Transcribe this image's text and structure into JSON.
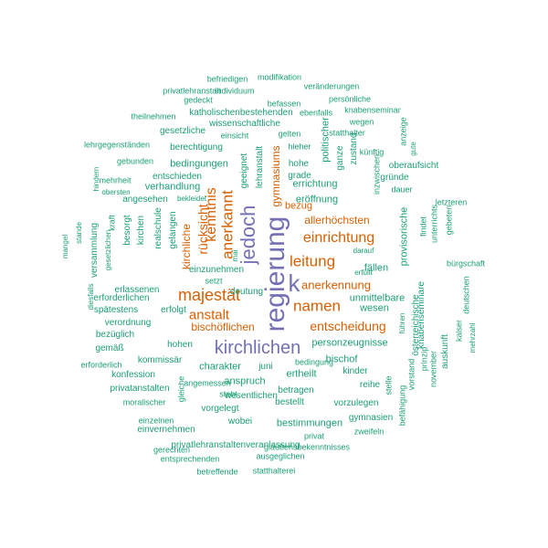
{
  "colors": {
    "green": "#1b9e77",
    "orange": "#d95f02",
    "purple": "#7570b3"
  },
  "words": [
    {
      "text": "regierung",
      "color": "purple"
    },
    {
      "text": "k",
      "color": "purple"
    },
    {
      "text": "jedoch",
      "color": "purple"
    },
    {
      "text": "kirchlichen",
      "color": "purple"
    },
    {
      "text": "majestät",
      "color": "orange"
    },
    {
      "text": "leitung",
      "color": "orange"
    },
    {
      "text": "anerkannt",
      "color": "orange"
    },
    {
      "text": "namen",
      "color": "orange"
    },
    {
      "text": "einrichtung",
      "color": "orange"
    },
    {
      "text": "anstalt",
      "color": "orange"
    },
    {
      "text": "kenntnis",
      "color": "orange"
    },
    {
      "text": "entscheidung",
      "color": "orange"
    },
    {
      "text": "rücksicht",
      "color": "orange"
    },
    {
      "text": "anerkennung",
      "color": "orange"
    },
    {
      "text": "gymnasiums",
      "color": "orange"
    },
    {
      "text": "allerhöchsten",
      "color": "orange"
    },
    {
      "text": "bischöflichen",
      "color": "orange"
    },
    {
      "text": "kirchliche",
      "color": "orange"
    },
    {
      "text": "bezug",
      "color": "orange"
    },
    {
      "text": "eröffnung",
      "color": "green"
    },
    {
      "text": "errichtung",
      "color": "green"
    },
    {
      "text": "bedingungen",
      "color": "green"
    },
    {
      "text": "verhandlung",
      "color": "green"
    },
    {
      "text": "charakter",
      "color": "green"
    },
    {
      "text": "anspruch",
      "color": "green"
    },
    {
      "text": "personzeugnisse",
      "color": "green"
    },
    {
      "text": "wesen",
      "color": "green"
    },
    {
      "text": "unmittelbare",
      "color": "green"
    },
    {
      "text": "fällen",
      "color": "green"
    },
    {
      "text": "provisorische",
      "color": "green"
    },
    {
      "text": "politischer",
      "color": "green"
    },
    {
      "text": "bischof",
      "color": "green"
    },
    {
      "text": "ertheilt",
      "color": "green"
    },
    {
      "text": "kinder",
      "color": "green"
    },
    {
      "text": "juni",
      "color": "green"
    },
    {
      "text": "hohen",
      "color": "green"
    },
    {
      "text": "erfolgt",
      "color": "green"
    },
    {
      "text": "geeignet",
      "color": "green"
    },
    {
      "text": "lehranstalt",
      "color": "green"
    },
    {
      "text": "realschule",
      "color": "green"
    },
    {
      "text": "gelangen",
      "color": "green"
    },
    {
      "text": "angesehen",
      "color": "green"
    },
    {
      "text": "entschieden",
      "color": "green"
    },
    {
      "text": "berechtigung",
      "color": "green"
    },
    {
      "text": "gesetzliche",
      "color": "green"
    },
    {
      "text": "wissenschaftliche",
      "color": "green"
    },
    {
      "text": "katholischenbestehenden",
      "color": "green"
    },
    {
      "text": "knabenseminar",
      "color": "green"
    },
    {
      "text": "ebenfalls",
      "color": "green"
    },
    {
      "text": "statthalter",
      "color": "green"
    },
    {
      "text": "wegen",
      "color": "green"
    },
    {
      "text": "befassen",
      "color": "green"
    },
    {
      "text": "individuum",
      "color": "green"
    },
    {
      "text": "privatlehranstalt",
      "color": "green"
    },
    {
      "text": "veränderungen",
      "color": "green"
    },
    {
      "text": "modifikation",
      "color": "green"
    },
    {
      "text": "befriedigen",
      "color": "green"
    },
    {
      "text": "persönliche",
      "color": "green"
    },
    {
      "text": "gedeckt",
      "color": "green"
    },
    {
      "text": "theilnehmen",
      "color": "green"
    },
    {
      "text": "lehrgegenständen",
      "color": "green"
    },
    {
      "text": "einsicht",
      "color": "green"
    },
    {
      "text": "gelten",
      "color": "green"
    },
    {
      "text": "hieher",
      "color": "green"
    },
    {
      "text": "künftig",
      "color": "green"
    },
    {
      "text": "anzeige",
      "color": "green"
    },
    {
      "text": "gute",
      "color": "green"
    },
    {
      "text": "gebunden",
      "color": "green"
    },
    {
      "text": "hohe",
      "color": "green"
    },
    {
      "text": "grade",
      "color": "green"
    },
    {
      "text": "ganze",
      "color": "green"
    },
    {
      "text": "zustand",
      "color": "green"
    },
    {
      "text": "oberaufsicht",
      "color": "green"
    },
    {
      "text": "gründe",
      "color": "green"
    },
    {
      "text": "dauer",
      "color": "green"
    },
    {
      "text": "inzwischen",
      "color": "green"
    },
    {
      "text": "mehrheit",
      "color": "green"
    },
    {
      "text": "obersten",
      "color": "green"
    },
    {
      "text": "hindern",
      "color": "green"
    },
    {
      "text": "bekleidet",
      "color": "green"
    },
    {
      "text": "kraft",
      "color": "green"
    },
    {
      "text": "kirchen",
      "color": "green"
    },
    {
      "text": "besorgt",
      "color": "green"
    },
    {
      "text": "versammlung",
      "color": "green"
    },
    {
      "text": "gesetzlichen",
      "color": "green"
    },
    {
      "text": "stande",
      "color": "green"
    },
    {
      "text": "mangel",
      "color": "green"
    },
    {
      "text": "einzunehmen",
      "color": "green"
    },
    {
      "text": "setzt",
      "color": "green"
    },
    {
      "text": "mai",
      "color": "green"
    },
    {
      "text": "darauf",
      "color": "green"
    },
    {
      "text": "erfüllt",
      "color": "green"
    },
    {
      "text": "findet",
      "color": "green"
    },
    {
      "text": "unterrichts",
      "color": "green"
    },
    {
      "text": "letzteren",
      "color": "green"
    },
    {
      "text": "gebeten",
      "color": "green"
    },
    {
      "text": "bürgschaft",
      "color": "green"
    },
    {
      "text": "erlassenen",
      "color": "green"
    },
    {
      "text": "erforderlichen",
      "color": "green"
    },
    {
      "text": "diesfalls",
      "color": "green"
    },
    {
      "text": "spätestens",
      "color": "green"
    },
    {
      "text": "verordnung",
      "color": "green"
    },
    {
      "text": "bezüglich",
      "color": "green"
    },
    {
      "text": "gemäß",
      "color": "green"
    },
    {
      "text": "kommissär",
      "color": "green"
    },
    {
      "text": "erforderlich",
      "color": "green"
    },
    {
      "text": "konfession",
      "color": "green"
    },
    {
      "text": "privatanstalten",
      "color": "green"
    },
    {
      "text": "moralischer",
      "color": "green"
    },
    {
      "text": "angemessen",
      "color": "green"
    },
    {
      "text": "steht",
      "color": "green"
    },
    {
      "text": "vorgelegt",
      "color": "green"
    },
    {
      "text": "wesentlichen",
      "color": "green"
    },
    {
      "text": "gleiche",
      "color": "green"
    },
    {
      "text": "einzelnen",
      "color": "green"
    },
    {
      "text": "wobei",
      "color": "green"
    },
    {
      "text": "einvernehmen",
      "color": "green"
    },
    {
      "text": "privatlehranstaltenveranlassung",
      "color": "green"
    },
    {
      "text": "gerechten",
      "color": "green"
    },
    {
      "text": "entsprechenden",
      "color": "green"
    },
    {
      "text": "ausgeglichen",
      "color": "green"
    },
    {
      "text": "glaubensbekenntnisses",
      "color": "green"
    },
    {
      "text": "betreffende",
      "color": "green"
    },
    {
      "text": "statthalterei",
      "color": "green"
    },
    {
      "text": "privat",
      "color": "green"
    },
    {
      "text": "bestimmungen",
      "color": "green"
    },
    {
      "text": "gymnasien",
      "color": "green"
    },
    {
      "text": "zweifeln",
      "color": "green"
    },
    {
      "text": "bestellt",
      "color": "green"
    },
    {
      "text": "vorzulegen",
      "color": "green"
    },
    {
      "text": "betragen",
      "color": "green"
    },
    {
      "text": "reihe",
      "color": "green"
    },
    {
      "text": "bedingung",
      "color": "green"
    },
    {
      "text": "stelle",
      "color": "green"
    },
    {
      "text": "befähigung",
      "color": "green"
    },
    {
      "text": "vorstand",
      "color": "green"
    },
    {
      "text": "prinzip",
      "color": "green"
    },
    {
      "text": "november",
      "color": "green"
    },
    {
      "text": "auskunft",
      "color": "green"
    },
    {
      "text": "knabenseminare",
      "color": "green"
    },
    {
      "text": "österreichische",
      "color": "green"
    },
    {
      "text": "führen",
      "color": "green"
    },
    {
      "text": "kaiser",
      "color": "green"
    },
    {
      "text": "mehrzahl",
      "color": "green"
    },
    {
      "text": "deutschen",
      "color": "green"
    },
    {
      "text": "deutung",
      "color": "green"
    },
    {
      "text": "i",
      "color": "green"
    }
  ]
}
